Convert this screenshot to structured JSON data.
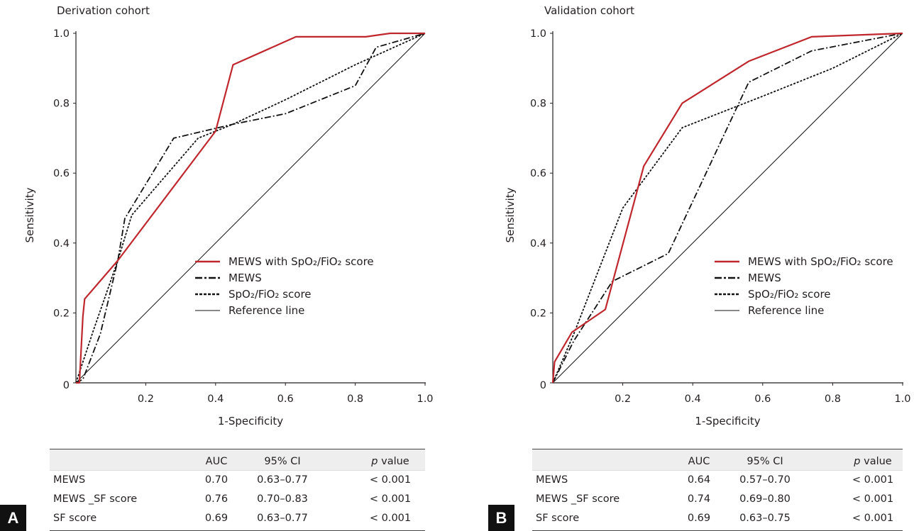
{
  "panels": [
    {
      "label": "A",
      "table": {
        "headers": [
          "",
          "AUC",
          "95% CI",
          "p value"
        ],
        "rows": [
          [
            "MEWS",
            "0.70",
            "0.63–0.77",
            "< 0.001"
          ],
          [
            "MEWS _SF score",
            "0.76",
            "0.70–0.83",
            "< 0.001"
          ],
          [
            "SF score",
            "0.69",
            "0.63–0.77",
            "< 0.001"
          ]
        ]
      }
    },
    {
      "label": "B",
      "table": {
        "headers": [
          "",
          "AUC",
          "95% CI",
          "p value"
        ],
        "rows": [
          [
            "MEWS",
            "0.64",
            "0.57–0.70",
            "< 0.001"
          ],
          [
            "MEWS _SF score",
            "0.74",
            "0.69–0.80",
            "< 0.001"
          ],
          [
            "SF score",
            "0.69",
            "0.63–0.75",
            "< 0.001"
          ]
        ]
      }
    }
  ],
  "chart_data": [
    {
      "type": "line",
      "title": "Derivation cohort",
      "xlabel": "1-Specificity",
      "ylabel": "Sensitivity",
      "xlim": [
        0,
        1
      ],
      "ylim": [
        0,
        1
      ],
      "xticks": [
        "0.2",
        "0.4",
        "0.6",
        "0.8",
        "1.0"
      ],
      "yticks": [
        "0",
        "0.2",
        "0.4",
        "0.6",
        "0.8",
        "1.0"
      ],
      "grid": false,
      "legend_position": "bottom-right",
      "series": [
        {
          "name": "MEWS with SpO₂/FiO₂ score",
          "style": "solid-thick",
          "color": "#c0272d",
          "x": [
            0,
            0.01,
            0.02,
            0.025,
            0.12,
            0.4,
            0.45,
            0.63,
            0.83,
            0.9,
            1.0
          ],
          "y": [
            0,
            0.0,
            0.19,
            0.24,
            0.35,
            0.72,
            0.91,
            0.99,
            0.99,
            1.0,
            1.0
          ]
        },
        {
          "name": "MEWS",
          "style": "dash-dot",
          "color": "#111111",
          "x": [
            0,
            0.02,
            0.07,
            0.12,
            0.14,
            0.28,
            0.45,
            0.6,
            0.8,
            0.86,
            1.0
          ],
          "y": [
            0,
            0.01,
            0.14,
            0.35,
            0.47,
            0.7,
            0.74,
            0.77,
            0.85,
            0.96,
            1.0
          ]
        },
        {
          "name": "SpO₂/FiO₂ score",
          "style": "dotted",
          "color": "#111111",
          "x": [
            0,
            0.05,
            0.12,
            0.16,
            0.35,
            0.45,
            0.6,
            0.8,
            1.0
          ],
          "y": [
            0,
            0.15,
            0.35,
            0.48,
            0.7,
            0.74,
            0.81,
            0.91,
            1.0
          ]
        },
        {
          "name": "Reference line",
          "style": "solid-thin",
          "color": "#111111",
          "x": [
            0,
            1
          ],
          "y": [
            0,
            1
          ]
        }
      ]
    },
    {
      "type": "line",
      "title": "Validation cohort",
      "xlabel": "1-Specificity",
      "ylabel": "Sensitivity",
      "xlim": [
        0,
        1
      ],
      "ylim": [
        0,
        1
      ],
      "xticks": [
        "0.2",
        "0.4",
        "0.6",
        "0.8",
        "1.0"
      ],
      "yticks": [
        "0",
        "0.2",
        "0.4",
        "0.6",
        "0.8",
        "1.0"
      ],
      "grid": false,
      "legend_position": "bottom-right",
      "series": [
        {
          "name": "MEWS with SpO₂/FiO₂ score",
          "style": "solid-thick",
          "color": "#c0272d",
          "x": [
            0,
            0.005,
            0.055,
            0.15,
            0.26,
            0.37,
            0.56,
            0.74,
            1.0
          ],
          "y": [
            0,
            0.06,
            0.145,
            0.21,
            0.62,
            0.8,
            0.92,
            0.99,
            1.0
          ]
        },
        {
          "name": "MEWS",
          "style": "dash-dot",
          "color": "#111111",
          "x": [
            0,
            0.06,
            0.17,
            0.33,
            0.56,
            0.74,
            1.0
          ],
          "y": [
            0,
            0.12,
            0.29,
            0.37,
            0.86,
            0.95,
            1.0
          ]
        },
        {
          "name": "SpO₂/FiO₂ score",
          "style": "dotted",
          "color": "#111111",
          "x": [
            0,
            0.06,
            0.2,
            0.37,
            0.6,
            0.8,
            1.0
          ],
          "y": [
            0,
            0.14,
            0.5,
            0.73,
            0.82,
            0.9,
            1.0
          ]
        },
        {
          "name": "Reference line",
          "style": "solid-thin",
          "color": "#111111",
          "x": [
            0,
            1
          ],
          "y": [
            0,
            1
          ]
        }
      ]
    }
  ]
}
